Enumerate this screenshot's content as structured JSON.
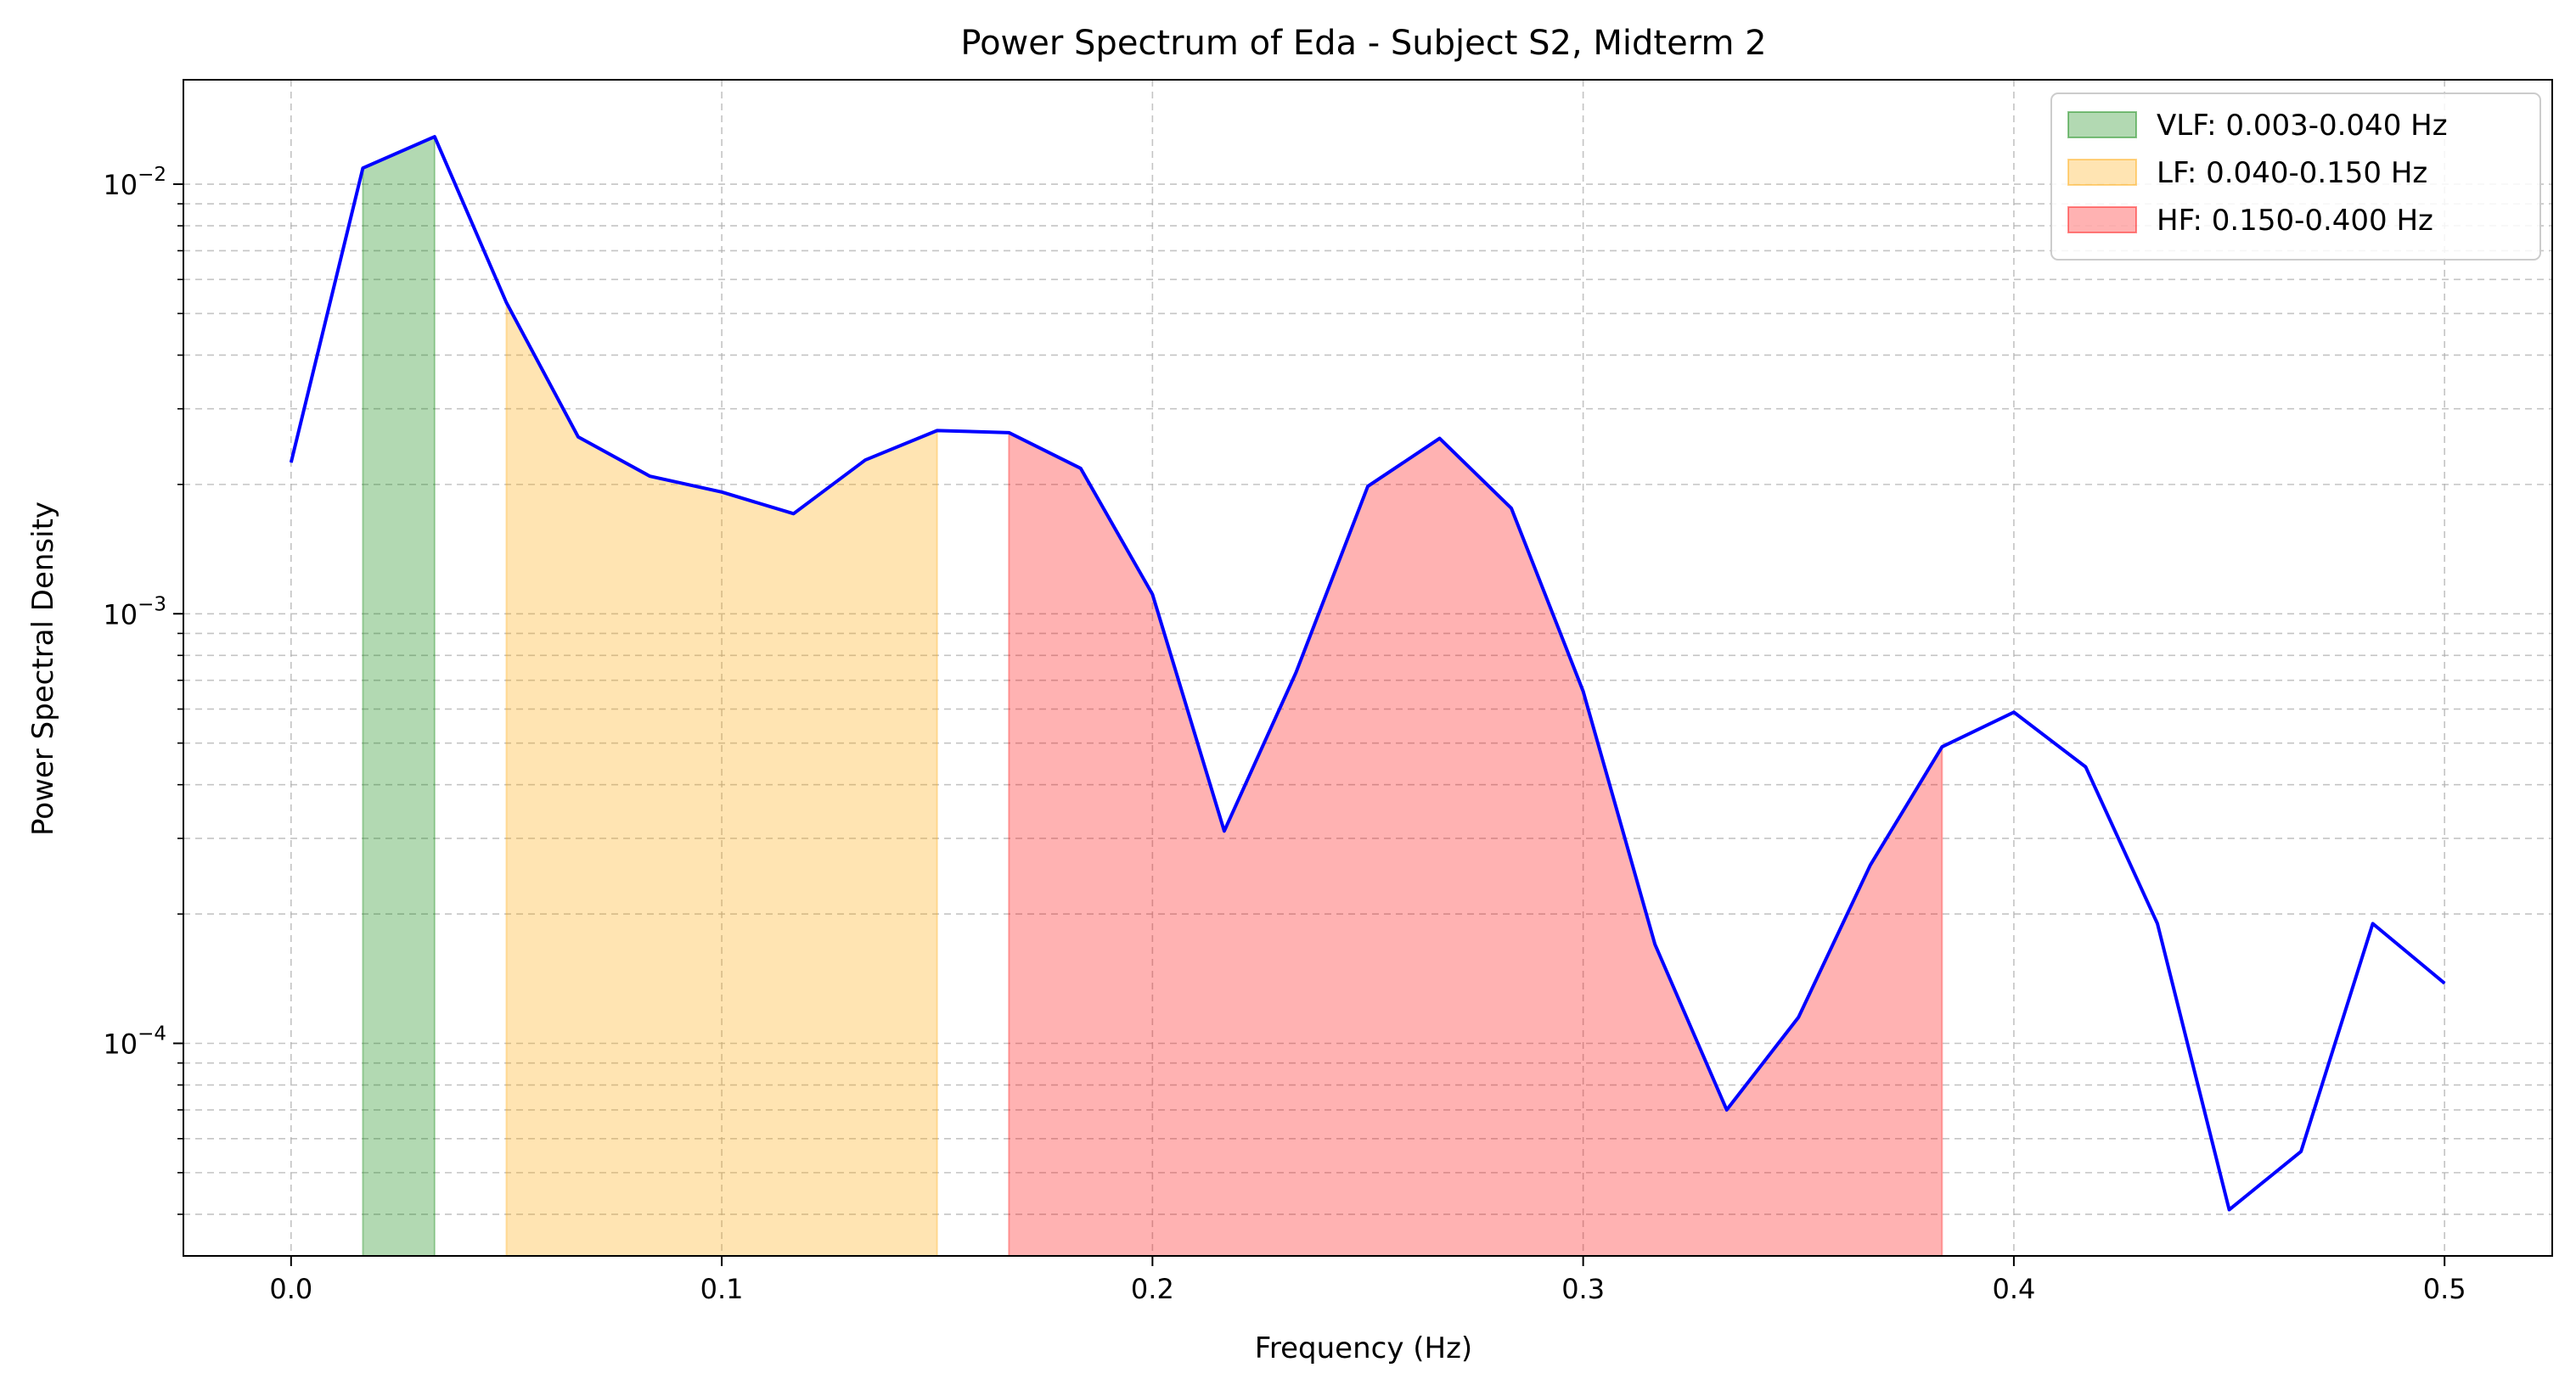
{
  "chart_data": {
    "type": "line",
    "title": "Power Spectrum of Eda - Subject S2, Midterm 2",
    "xlabel": "Frequency (Hz)",
    "ylabel": "Power Spectral Density",
    "xlim": [
      -0.025,
      0.525
    ],
    "ylim": [
      3.2e-05,
      0.0175
    ],
    "yscale": "log",
    "grid": true,
    "legend_position": "top-right",
    "x_ticks": [
      "0.0",
      "0.1",
      "0.2",
      "0.3",
      "0.4",
      "0.5"
    ],
    "y_ticks": [
      {
        "base": "10",
        "exp": "−4",
        "value": 0.0001
      },
      {
        "base": "10",
        "exp": "−3",
        "value": 0.001
      },
      {
        "base": "10",
        "exp": "−2",
        "value": 0.01
      }
    ],
    "series": [
      {
        "color": "#0000ff",
        "x": [
          0.0,
          0.01667,
          0.03333,
          0.05,
          0.06667,
          0.08333,
          0.1,
          0.11667,
          0.13333,
          0.15,
          0.16667,
          0.18333,
          0.2,
          0.21667,
          0.23333,
          0.25,
          0.26667,
          0.28333,
          0.3,
          0.31667,
          0.33333,
          0.35,
          0.36667,
          0.38333,
          0.4,
          0.41667,
          0.43333,
          0.45,
          0.46667,
          0.48333,
          0.5
        ],
        "y": [
          0.00225,
          0.0109,
          0.0129,
          0.0053,
          0.00258,
          0.00209,
          0.00192,
          0.00171,
          0.00228,
          0.00267,
          0.00264,
          0.00218,
          0.00111,
          0.000312,
          0.00073,
          0.00198,
          0.00256,
          0.00176,
          0.00066,
          0.00017,
          7e-05,
          0.000115,
          0.00026,
          0.00049,
          0.00059,
          0.00044,
          0.00019,
          4.1e-05,
          5.6e-05,
          0.00019,
          0.000138
        ]
      }
    ],
    "bands": [
      {
        "label": "VLF: 0.003-0.040 Hz",
        "x_start": 0.01667,
        "x_end": 0.03333,
        "color": "#008000",
        "opacity": 0.3
      },
      {
        "label": "LF: 0.040-0.150 Hz",
        "x_start": 0.05,
        "x_end": 0.15,
        "color": "#ffa500",
        "opacity": 0.3
      },
      {
        "label": "HF: 0.150-0.400 Hz",
        "x_start": 0.16667,
        "x_end": 0.38333,
        "color": "#ff0000",
        "opacity": 0.3
      }
    ]
  }
}
